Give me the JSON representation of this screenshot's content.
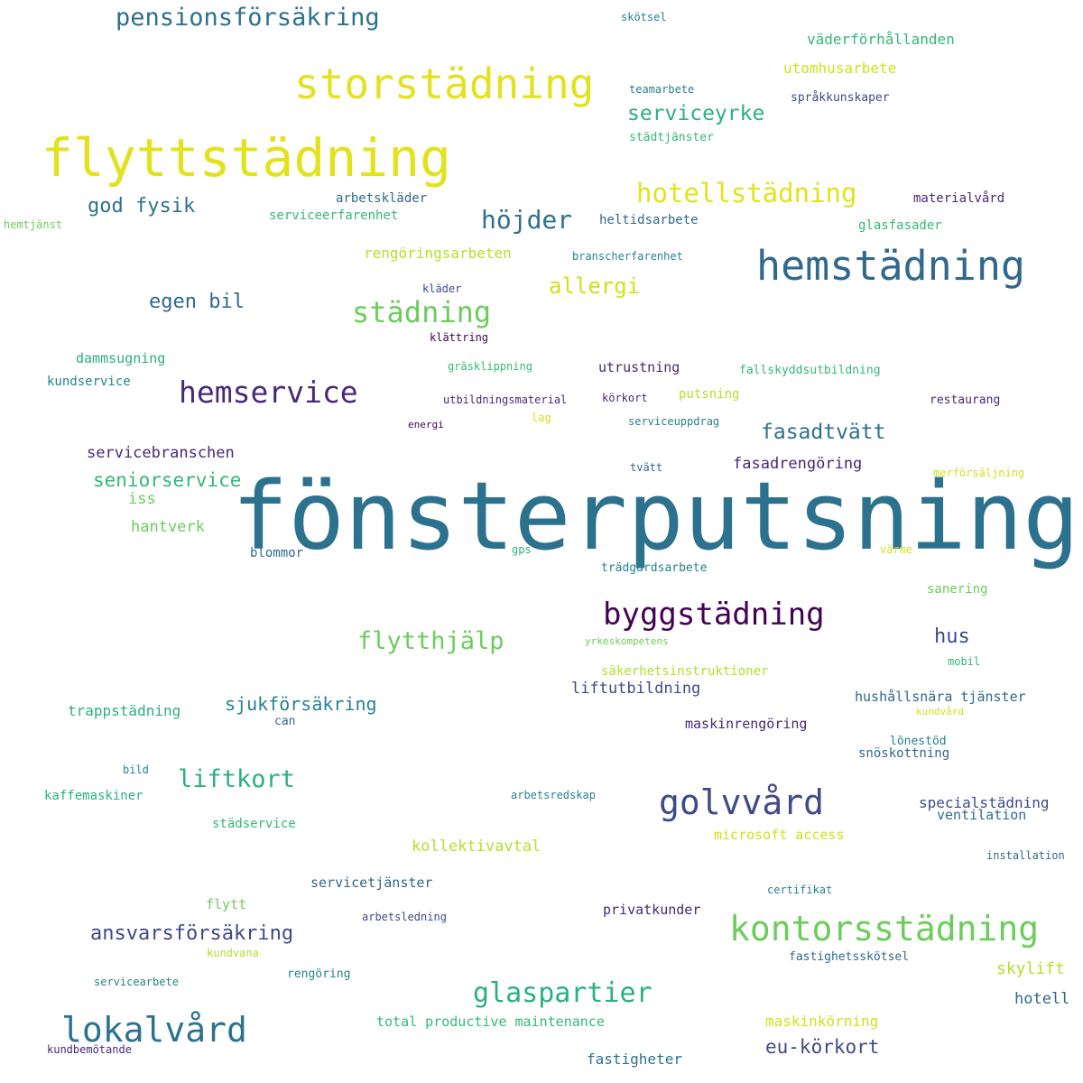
{
  "palette": {
    "yellow": "#e3e21f",
    "lime": "#b5de2b",
    "green": "#6ccd5a",
    "mint": "#35b779",
    "teal": "#1f9e89",
    "blue": "#26828e",
    "steel": "#31688e",
    "indigo": "#3e4a89",
    "purple": "#482878",
    "dark": "#440154"
  },
  "words": [
    {
      "text": "fönsterputsning",
      "color": "#2c728e"
    },
    {
      "text": "flyttstädning",
      "color": "#e3e21f"
    },
    {
      "text": "storstädning",
      "color": "#e3e21f"
    },
    {
      "text": "hemstädning",
      "color": "#31688e"
    },
    {
      "text": "kontorsstädning",
      "color": "#6ccd5a"
    },
    {
      "text": "byggstädning",
      "color": "#440154"
    },
    {
      "text": "lokalvård",
      "color": "#2c728e"
    },
    {
      "text": "golvvård",
      "color": "#3e4a89"
    },
    {
      "text": "hemservice",
      "color": "#482878"
    },
    {
      "text": "glaspartier",
      "color": "#2ab07f"
    },
    {
      "text": "hotellstädning",
      "color": "#e3e21f"
    },
    {
      "text": "städning",
      "color": "#6ccd5a"
    },
    {
      "text": "pensionsförsäkring",
      "color": "#2c728e"
    },
    {
      "text": "flytthjälp",
      "color": "#6ccd5a"
    },
    {
      "text": "liftkort",
      "color": "#2ab07f"
    },
    {
      "text": "höjder",
      "color": "#2c728e"
    },
    {
      "text": "serviceyrke",
      "color": "#2ab07f"
    },
    {
      "text": "ansvarsförsäkring",
      "color": "#3e4a89"
    },
    {
      "text": "fasadtvätt",
      "color": "#2c728e"
    },
    {
      "text": "allergi",
      "color": "#d0e11c"
    },
    {
      "text": "seniorservice",
      "color": "#35b779"
    },
    {
      "text": "god fysik",
      "color": "#2c728e"
    },
    {
      "text": "egen bil",
      "color": "#31688e"
    },
    {
      "text": "eu-körkort",
      "color": "#3e4a89"
    },
    {
      "text": "sjukförsäkring",
      "color": "#26828e"
    },
    {
      "text": "hus",
      "color": "#3e4a89"
    },
    {
      "text": "skylift",
      "color": "#b5de2b"
    },
    {
      "text": "kollektivavtal",
      "color": "#b5de2b"
    },
    {
      "text": "servicebranschen",
      "color": "#482878"
    },
    {
      "text": "fasadrengöring",
      "color": "#482878"
    },
    {
      "text": "väderförhållanden",
      "color": "#35b779"
    },
    {
      "text": "utomhusarbete",
      "color": "#d0e11c"
    },
    {
      "text": "rengöringsarbeten",
      "color": "#b5de2b"
    },
    {
      "text": "trappstädning",
      "color": "#2ab07f"
    },
    {
      "text": "liftutbildning",
      "color": "#3e4a89"
    },
    {
      "text": "hantverk",
      "color": "#6ccd5a"
    },
    {
      "text": "hotell",
      "color": "#31688e"
    },
    {
      "text": "fastigheter",
      "color": "#2c728e"
    },
    {
      "text": "maskinkörning",
      "color": "#d0e11c"
    },
    {
      "text": "total productive maintenance",
      "color": "#35b779"
    },
    {
      "text": "microsoft access",
      "color": "#d0e11c"
    },
    {
      "text": "hushållsnära tjänster",
      "color": "#31688e"
    },
    {
      "text": "specialstädning",
      "color": "#3e4a89"
    },
    {
      "text": "ventilation",
      "color": "#31688e"
    },
    {
      "text": "maskinrengöring",
      "color": "#482878"
    },
    {
      "text": "utrustning",
      "color": "#482878"
    },
    {
      "text": "säkerhetsinstruktioner",
      "color": "#b5de2b"
    },
    {
      "text": "servicetjänster",
      "color": "#31688e"
    },
    {
      "text": "privatkunder",
      "color": "#482878"
    },
    {
      "text": "dammsugning",
      "color": "#2ab07f"
    },
    {
      "text": "kundservice",
      "color": "#26828e"
    },
    {
      "text": "iss",
      "color": "#6ccd5a"
    },
    {
      "text": "kaffemaskiner",
      "color": "#2ab07f"
    },
    {
      "text": "städservice",
      "color": "#35b779"
    },
    {
      "text": "flytt",
      "color": "#6ccd5a"
    },
    {
      "text": "blommor",
      "color": "#31688e"
    },
    {
      "text": "arbetskläder",
      "color": "#31688e"
    },
    {
      "text": "serviceerfarenhet",
      "color": "#35b779"
    },
    {
      "text": "heltidsarbete",
      "color": "#31688e"
    },
    {
      "text": "materialvård",
      "color": "#482878"
    },
    {
      "text": "glasfasader",
      "color": "#35b779"
    },
    {
      "text": "sanering",
      "color": "#6ccd5a"
    },
    {
      "text": "snöskottning",
      "color": "#31688e"
    },
    {
      "text": "lönestöd",
      "color": "#26828e"
    },
    {
      "text": "putsning",
      "color": "#b5de2b"
    },
    {
      "text": "fallskyddsutbildning",
      "color": "#35b779"
    },
    {
      "text": "restaurang",
      "color": "#482878"
    },
    {
      "text": "trädgårdsarbete",
      "color": "#26828e"
    },
    {
      "text": "skötsel",
      "color": "#26828e"
    },
    {
      "text": "teamarbete",
      "color": "#26828e"
    },
    {
      "text": "språkkunskaper",
      "color": "#3e4a89"
    },
    {
      "text": "städtjänster",
      "color": "#35b779"
    },
    {
      "text": "hemtjänst",
      "color": "#6ccd5a"
    },
    {
      "text": "branscherfarenhet",
      "color": "#26828e"
    },
    {
      "text": "kläder",
      "color": "#3e4a89"
    },
    {
      "text": "klättring",
      "color": "#440154"
    },
    {
      "text": "gräsklippning",
      "color": "#35b779"
    },
    {
      "text": "utbildningsmaterial",
      "color": "#482878"
    },
    {
      "text": "körkort",
      "color": "#482878"
    },
    {
      "text": "energi",
      "color": "#440154"
    },
    {
      "text": "lag",
      "color": "#d0e11c"
    },
    {
      "text": "serviceuppdrag",
      "color": "#26828e"
    },
    {
      "text": "tvätt",
      "color": "#31688e"
    },
    {
      "text": "merförsäljning",
      "color": "#d0e11c"
    },
    {
      "text": "gps",
      "color": "#2ab07f"
    },
    {
      "text": "värme",
      "color": "#d0e11c"
    },
    {
      "text": "yrkeskompetens",
      "color": "#6ccd5a"
    },
    {
      "text": "mobil",
      "color": "#35b779"
    },
    {
      "text": "can",
      "color": "#31688e"
    },
    {
      "text": "kundvård",
      "color": "#d0e11c"
    },
    {
      "text": "bild",
      "color": "#26828e"
    },
    {
      "text": "arbetsredskap",
      "color": "#26828e"
    },
    {
      "text": "certifikat",
      "color": "#26828e"
    },
    {
      "text": "installation",
      "color": "#31688e"
    },
    {
      "text": "arbetsledning",
      "color": "#3e4a89"
    },
    {
      "text": "kundvana",
      "color": "#b5de2b"
    },
    {
      "text": "servicearbete",
      "color": "#26828e"
    },
    {
      "text": "rengöring",
      "color": "#26828e"
    },
    {
      "text": "fastighetsskötsel",
      "color": "#31688e"
    },
    {
      "text": "kundbemötande",
      "color": "#482878"
    }
  ]
}
